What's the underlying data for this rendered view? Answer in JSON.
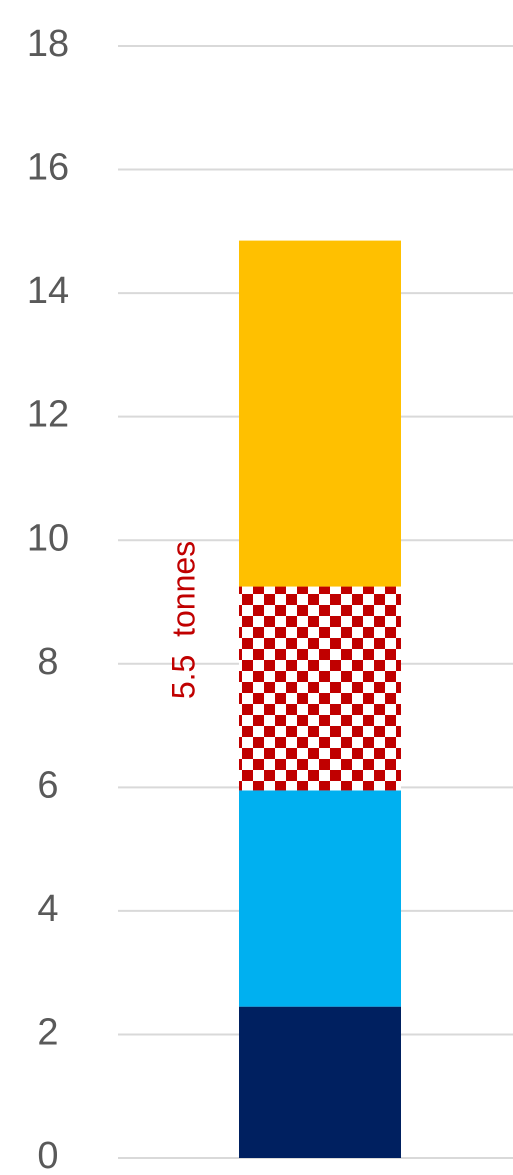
{
  "chart_data": {
    "type": "stacked_bar",
    "categories": [
      null
    ],
    "series": [
      {
        "color": "#002060",
        "values": [
          2.45
        ]
      },
      {
        "color": "#00b0f0",
        "values": [
          3.5
        ]
      },
      {
        "color": "#c00000",
        "pattern": "checkerboard",
        "values": [
          3.3
        ]
      },
      {
        "color": "#ffc000",
        "values": [
          5.6
        ]
      }
    ],
    "annotation": "5.5  tonnes",
    "ylim": [
      0,
      18
    ],
    "yticks": [
      0,
      2,
      4,
      6,
      8,
      10,
      12,
      14,
      16,
      18
    ],
    "grid": true
  }
}
